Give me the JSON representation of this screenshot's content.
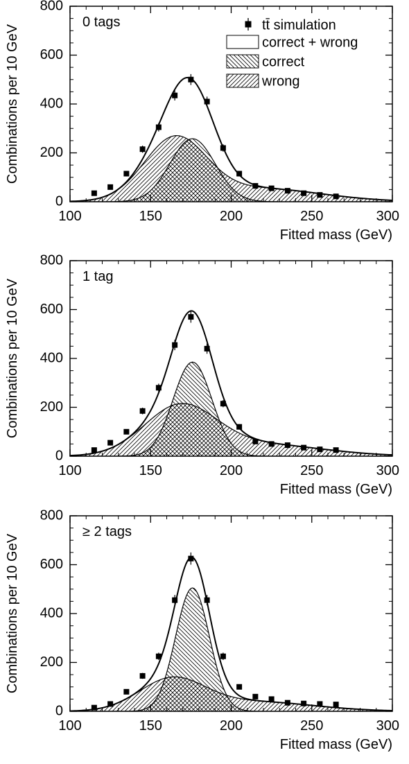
{
  "figure": {
    "legend": {
      "entries": [
        {
          "key": "sim",
          "label": "tt̄ simulation"
        },
        {
          "key": "total",
          "label": "correct + wrong"
        },
        {
          "key": "correct",
          "label": "correct"
        },
        {
          "key": "wrong",
          "label": "wrong"
        }
      ]
    }
  },
  "chart_data": [
    {
      "type": "line",
      "panel_label": "0 tags",
      "xlabel": "Fitted mass (GeV)",
      "ylabel": "Combinations per 10 GeV",
      "xlim": [
        100,
        300
      ],
      "ylim": [
        0,
        800
      ],
      "xticks": [
        100,
        150,
        200,
        250,
        300
      ],
      "yticks": [
        0,
        200,
        400,
        600,
        800
      ],
      "grid": false,
      "legend_position": "top-right",
      "series": [
        {
          "name": "tt̄ simulation",
          "kind": "points",
          "x": [
            115,
            125,
            135,
            145,
            155,
            165,
            175,
            185,
            195,
            205,
            215,
            225,
            235,
            245,
            255,
            265
          ],
          "y": [
            35,
            60,
            115,
            215,
            305,
            435,
            500,
            410,
            220,
            115,
            65,
            55,
            45,
            35,
            28,
            22
          ]
        },
        {
          "name": "correct",
          "kind": "gaussian",
          "mean": 176,
          "sigma": 14,
          "amplitude": 258
        },
        {
          "name": "wrong",
          "kind": "components",
          "components": [
            {
              "mean": 165,
              "sigma": 19,
              "amplitude": 245
            },
            {
              "mean": 215,
              "sigma": 40,
              "amplitude": 55
            }
          ]
        },
        {
          "name": "correct + wrong",
          "kind": "sum"
        }
      ]
    },
    {
      "type": "line",
      "panel_label": "1 tag",
      "xlabel": "Fitted mass (GeV)",
      "ylabel": "Combinations per 10 GeV",
      "xlim": [
        100,
        300
      ],
      "ylim": [
        0,
        800
      ],
      "xticks": [
        100,
        150,
        200,
        250,
        300
      ],
      "yticks": [
        0,
        200,
        400,
        600,
        800
      ],
      "grid": false,
      "series": [
        {
          "name": "tt̄ simulation",
          "kind": "points",
          "x": [
            115,
            125,
            135,
            145,
            155,
            165,
            175,
            185,
            195,
            205,
            215,
            225,
            235,
            245,
            255,
            265
          ],
          "y": [
            25,
            55,
            100,
            185,
            280,
            455,
            570,
            440,
            215,
            120,
            60,
            50,
            45,
            35,
            28,
            25
          ]
        },
        {
          "name": "correct",
          "kind": "gaussian",
          "mean": 176,
          "sigma": 12,
          "amplitude": 385
        },
        {
          "name": "wrong",
          "kind": "components",
          "components": [
            {
              "mean": 168,
              "sigma": 22,
              "amplitude": 190
            },
            {
              "mean": 215,
              "sigma": 40,
              "amplitude": 50
            }
          ]
        },
        {
          "name": "correct + wrong",
          "kind": "sum"
        }
      ]
    },
    {
      "type": "line",
      "panel_label": "≥ 2 tags",
      "xlabel": "Fitted mass (GeV)",
      "ylabel": "Combinations per 10 GeV",
      "xlim": [
        100,
        300
      ],
      "ylim": [
        0,
        800
      ],
      "xticks": [
        100,
        150,
        200,
        250,
        300
      ],
      "yticks": [
        0,
        200,
        400,
        600,
        800
      ],
      "grid": false,
      "series": [
        {
          "name": "tt̄ simulation",
          "kind": "points",
          "x": [
            115,
            125,
            135,
            145,
            155,
            165,
            175,
            185,
            195,
            205,
            215,
            225,
            235,
            245,
            255,
            265
          ],
          "y": [
            15,
            30,
            80,
            145,
            225,
            455,
            625,
            455,
            225,
            100,
            60,
            50,
            35,
            32,
            30,
            28
          ]
        },
        {
          "name": "correct",
          "kind": "gaussian",
          "mean": 176,
          "sigma": 10.5,
          "amplitude": 505
        },
        {
          "name": "wrong",
          "kind": "components",
          "components": [
            {
              "mean": 163,
              "sigma": 20,
              "amplitude": 123
            },
            {
              "mean": 212,
              "sigma": 38,
              "amplitude": 40
            }
          ]
        },
        {
          "name": "correct + wrong",
          "kind": "sum"
        }
      ]
    }
  ]
}
